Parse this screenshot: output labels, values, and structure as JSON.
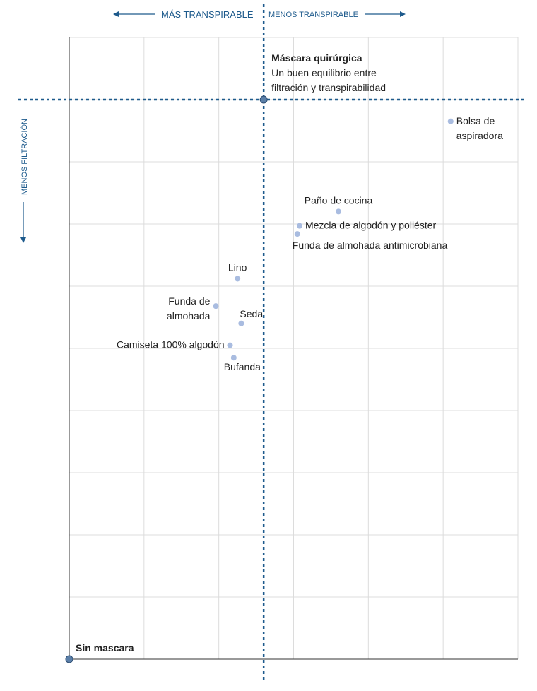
{
  "chart_data": {
    "type": "scatter",
    "title": "",
    "xlabel": "",
    "ylabel": "",
    "axis_headers": {
      "left": "MÁS TRANSPIRABLE",
      "right": "MENOS TRANSPIRABLE",
      "vertical": "MENOS FILTRACIÓN"
    },
    "xlim": [
      0,
      6
    ],
    "ylim": [
      0,
      10
    ],
    "grid": true,
    "reference": {
      "name": "Máscara quirúrgica",
      "description_lines": [
        "Un buen equilibrio entre",
        "filtración y transpirabilidad"
      ],
      "x": 2.6,
      "y": 9.0
    },
    "origin_point": {
      "name": "Sin mascara",
      "x": 0,
      "y": 0
    },
    "points": [
      {
        "label": [
          "Bolsa de",
          "aspiradora"
        ],
        "x": 5.1,
        "y": 8.65,
        "anchor": "start"
      },
      {
        "label": [
          "Paño de cocina"
        ],
        "x": 3.6,
        "y": 7.2,
        "anchor": "middle-above"
      },
      {
        "label": [
          "Mezcla de algodón y poliéster"
        ],
        "x": 3.08,
        "y": 6.97,
        "anchor": "start"
      },
      {
        "label": [
          "Funda de almohada antimicrobiana"
        ],
        "x": 3.05,
        "y": 6.84,
        "anchor": "start-below"
      },
      {
        "label": [
          "Lino"
        ],
        "x": 2.25,
        "y": 6.12,
        "anchor": "middle-above"
      },
      {
        "label": [
          "Funda de",
          "almohada"
        ],
        "x": 1.96,
        "y": 5.68,
        "anchor": "end"
      },
      {
        "label": [
          "Seda"
        ],
        "x": 2.3,
        "y": 5.4,
        "anchor": "start-above"
      },
      {
        "label": [
          "Camiseta 100% algodón"
        ],
        "x": 2.15,
        "y": 5.05,
        "anchor": "end"
      },
      {
        "label": [
          "Bufanda"
        ],
        "x": 2.2,
        "y": 4.85,
        "anchor": "middle-below"
      }
    ],
    "colors": {
      "point": "#a9bce0",
      "reference_point": "#5b7fa8",
      "reference_line": "#1d5a8c",
      "grid": "#dcdcdc",
      "axis": "#333333"
    }
  }
}
